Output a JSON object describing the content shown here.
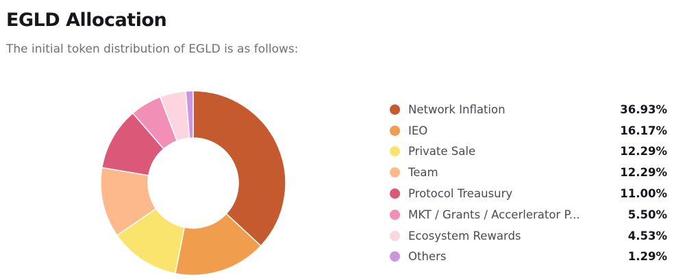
{
  "header": {
    "title": "EGLD Allocation",
    "subtitle": "The initial token distribution of EGLD is as follows:"
  },
  "chart_data": {
    "type": "pie",
    "title": "EGLD Allocation",
    "subtitle": "The initial token distribution of EGLD is as follows:",
    "donut": true,
    "legend_position": "right",
    "start_angle_deg": 0,
    "direction": "clockwise",
    "slices": [
      {
        "label": "Network Inflation",
        "value": 36.93,
        "display": "36.93%",
        "color": "#C65A2F"
      },
      {
        "label": "IEO",
        "value": 16.17,
        "display": "16.17%",
        "color": "#F09D4E"
      },
      {
        "label": "Private Sale",
        "value": 12.29,
        "display": "12.29%",
        "color": "#FAE46E"
      },
      {
        "label": "Team",
        "value": 12.29,
        "display": "12.29%",
        "color": "#FDB98B"
      },
      {
        "label": "Protocol Treausury",
        "value": 11.0,
        "display": "11.00%",
        "color": "#DB5878"
      },
      {
        "label": "MKT / Grants / Accerlerator P...",
        "value": 5.5,
        "display": "5.50%",
        "color": "#F28FB7"
      },
      {
        "label": "Ecosystem Rewards",
        "value": 4.53,
        "display": "4.53%",
        "color": "#FDD5E0"
      },
      {
        "label": "Others",
        "value": 1.29,
        "display": "1.29%",
        "color": "#CC96DC"
      }
    ]
  }
}
